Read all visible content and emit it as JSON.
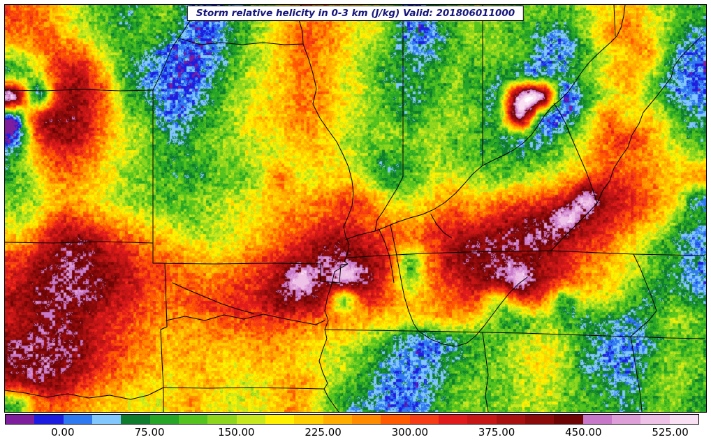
{
  "title": {
    "text": "Storm relative helicity in 0-3 km (J/kg) Valid: 201806011000"
  },
  "colorbar": {
    "min": -50,
    "max": 550,
    "interval": 25,
    "colors": [
      "#7E1E9C",
      "#1C1CE0",
      "#2E78F0",
      "#82C8FF",
      "#0E7B2D",
      "#27A527",
      "#55C31E",
      "#8ED61E",
      "#C8E81E",
      "#FFF000",
      "#FFD000",
      "#FFAE00",
      "#FF8C00",
      "#FF5A00",
      "#F53C14",
      "#E11B1B",
      "#C61616",
      "#A81010",
      "#8B0A0A",
      "#6E0505",
      "#C878C8",
      "#DE9ED8",
      "#EEC2E6",
      "#F9E0F2"
    ],
    "over_color": "#FFFFFF",
    "tick_labels": [
      "0.00",
      "75.00",
      "150.00",
      "225.00",
      "300.00",
      "375.00",
      "450.00",
      "525.00"
    ],
    "tick_values": [
      0,
      75,
      150,
      225,
      300,
      375,
      450,
      525
    ]
  },
  "chart_data": {
    "type": "heatmap",
    "title": "Storm relative helicity in 0-3 km",
    "units": "J/kg",
    "valid": "201806011000",
    "levels_min": -50,
    "levels_max": 550,
    "level_step": 25,
    "grid_cols": 32,
    "grid_rows": 20,
    "values": [
      [
        300,
        280,
        220,
        150,
        100,
        60,
        100,
        120,
        20,
        0,
        60,
        120,
        180,
        260,
        260,
        200,
        180,
        150,
        0,
        60,
        120,
        150,
        120,
        100,
        120,
        100,
        160,
        200,
        240,
        180,
        130,
        80
      ],
      [
        280,
        300,
        250,
        180,
        120,
        80,
        120,
        60,
        10,
        0,
        80,
        140,
        220,
        300,
        280,
        220,
        180,
        120,
        20,
        30,
        100,
        140,
        120,
        100,
        60,
        20,
        120,
        250,
        280,
        200,
        100,
        40
      ],
      [
        150,
        220,
        320,
        300,
        180,
        100,
        60,
        0,
        0,
        20,
        100,
        150,
        200,
        280,
        260,
        200,
        150,
        100,
        40,
        60,
        120,
        100,
        140,
        120,
        40,
        20,
        100,
        180,
        220,
        250,
        60,
        10
      ],
      [
        100,
        150,
        350,
        380,
        250,
        80,
        30,
        0,
        0,
        30,
        120,
        180,
        220,
        260,
        250,
        180,
        140,
        80,
        60,
        100,
        120,
        100,
        80,
        40,
        30,
        60,
        120,
        200,
        260,
        150,
        20,
        0
      ],
      [
        540,
        -30,
        380,
        400,
        300,
        120,
        60,
        0,
        20,
        80,
        140,
        180,
        200,
        280,
        260,
        200,
        160,
        100,
        60,
        100,
        120,
        100,
        60,
        540,
        560,
        -30,
        80,
        160,
        220,
        120,
        40,
        20
      ],
      [
        -20,
        380,
        420,
        400,
        280,
        150,
        100,
        20,
        40,
        100,
        150,
        200,
        220,
        280,
        240,
        180,
        140,
        100,
        80,
        120,
        140,
        120,
        80,
        540,
        30,
        0,
        120,
        300,
        180,
        220,
        120,
        60
      ],
      [
        -30,
        320,
        400,
        380,
        250,
        180,
        150,
        60,
        80,
        120,
        150,
        180,
        200,
        240,
        220,
        160,
        120,
        140,
        120,
        150,
        120,
        100,
        80,
        60,
        40,
        100,
        180,
        280,
        320,
        250,
        150,
        80
      ],
      [
        80,
        250,
        320,
        300,
        220,
        160,
        120,
        80,
        100,
        120,
        140,
        160,
        180,
        200,
        220,
        180,
        120,
        80,
        100,
        140,
        120,
        100,
        100,
        80,
        100,
        140,
        220,
        300,
        280,
        250,
        200,
        150
      ],
      [
        100,
        180,
        280,
        260,
        200,
        150,
        120,
        100,
        80,
        100,
        120,
        140,
        300,
        180,
        200,
        220,
        160,
        60,
        100,
        160,
        180,
        140,
        120,
        140,
        180,
        220,
        280,
        320,
        300,
        260,
        220,
        250
      ],
      [
        120,
        160,
        230,
        220,
        180,
        140,
        120,
        100,
        120,
        140,
        160,
        180,
        220,
        240,
        260,
        300,
        280,
        180,
        160,
        220,
        250,
        220,
        250,
        280,
        300,
        340,
        540,
        380,
        340,
        280,
        220,
        60
      ],
      [
        150,
        200,
        320,
        300,
        250,
        200,
        180,
        150,
        120,
        150,
        180,
        200,
        250,
        280,
        300,
        330,
        300,
        250,
        220,
        280,
        320,
        300,
        350,
        400,
        420,
        540,
        420,
        350,
        300,
        250,
        150,
        60
      ],
      [
        220,
        300,
        400,
        420,
        350,
        300,
        250,
        220,
        180,
        160,
        180,
        220,
        280,
        320,
        380,
        400,
        350,
        300,
        280,
        320,
        380,
        420,
        430,
        440,
        460,
        400,
        350,
        300,
        220,
        150,
        80,
        30
      ],
      [
        320,
        380,
        440,
        445,
        400,
        350,
        300,
        280,
        250,
        220,
        250,
        300,
        350,
        400,
        440,
        445,
        430,
        340,
        80,
        300,
        400,
        430,
        440,
        430,
        400,
        360,
        280,
        240,
        180,
        120,
        80,
        40
      ],
      [
        340,
        420,
        445,
        448,
        420,
        380,
        320,
        300,
        280,
        260,
        300,
        330,
        400,
        540,
        445,
        540,
        440,
        300,
        120,
        280,
        350,
        400,
        430,
        540,
        380,
        330,
        250,
        220,
        160,
        100,
        60,
        20
      ],
      [
        400,
        440,
        445,
        445,
        400,
        350,
        300,
        280,
        300,
        320,
        330,
        350,
        430,
        445,
        380,
        80,
        350,
        280,
        220,
        250,
        300,
        320,
        150,
        300,
        320,
        60,
        200,
        160,
        120,
        60,
        100,
        60
      ],
      [
        350,
        420,
        430,
        400,
        350,
        320,
        280,
        250,
        260,
        280,
        300,
        320,
        330,
        300,
        280,
        260,
        220,
        200,
        180,
        220,
        240,
        200,
        120,
        60,
        150,
        100,
        60,
        80,
        40,
        100,
        150,
        120
      ],
      [
        430,
        445,
        448,
        430,
        350,
        300,
        260,
        230,
        240,
        250,
        240,
        260,
        250,
        230,
        200,
        180,
        150,
        80,
        30,
        20,
        60,
        100,
        120,
        150,
        180,
        160,
        80,
        30,
        20,
        60,
        120,
        100
      ],
      [
        445,
        448,
        448,
        420,
        330,
        280,
        240,
        220,
        230,
        220,
        200,
        230,
        240,
        200,
        180,
        150,
        100,
        40,
        10,
        30,
        80,
        100,
        120,
        180,
        200,
        150,
        60,
        20,
        30,
        80,
        140,
        120
      ],
      [
        400,
        430,
        420,
        350,
        280,
        250,
        220,
        200,
        220,
        230,
        190,
        180,
        220,
        260,
        180,
        120,
        80,
        30,
        10,
        40,
        100,
        120,
        130,
        140,
        180,
        140,
        80,
        60,
        40,
        100,
        140,
        100
      ],
      [
        100,
        280,
        300,
        250,
        220,
        200,
        180,
        200,
        250,
        180,
        170,
        180,
        230,
        250,
        150,
        80,
        40,
        10,
        0,
        60,
        120,
        130,
        120,
        140,
        160,
        120,
        100,
        80,
        60,
        110,
        130,
        90
      ]
    ]
  }
}
